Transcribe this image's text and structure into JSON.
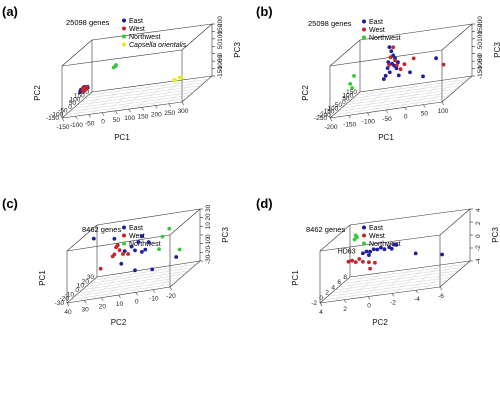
{
  "chart_data": [
    {
      "type": "scatter",
      "panel_label": "(a)",
      "note": "25098 genes",
      "xlabel": "PC1",
      "ylabel": "PC2",
      "zlabel": "PC3",
      "x_ticks": [
        "-150",
        "-100",
        "-50",
        "0",
        "50",
        "100",
        "150",
        "200",
        "250",
        "300"
      ],
      "y_ticks": [
        "-150",
        "-100",
        "-50",
        "0",
        "50",
        "100",
        "150",
        "200"
      ],
      "z_ticks": [
        "-150",
        "-100",
        "-50",
        "0",
        "50",
        "100",
        "150",
        "200"
      ],
      "legend": [
        {
          "name": "East",
          "color": "#1f1f9e"
        },
        {
          "name": "West",
          "color": "#c0262d"
        },
        {
          "name": "Northwest",
          "color": "#37c837"
        },
        {
          "name": "Capsella orientalis",
          "color": "#e8e82a",
          "italic": true
        }
      ],
      "series": [
        {
          "name": "East",
          "color": "#1f1f9e",
          "points": [
            [
              -108,
              -60,
              -15
            ],
            [
              -103,
              -55,
              -12
            ],
            [
              -98,
              -70,
              -20
            ],
            [
              -95,
              -50,
              -10
            ],
            [
              -92,
              -62,
              -18
            ],
            [
              -100,
              -45,
              -5
            ],
            [
              -88,
              -58,
              -14
            ],
            [
              -106,
              -75,
              -22
            ],
            [
              -90,
              -40,
              -8
            ],
            [
              -97,
              -66,
              -16
            ],
            [
              -85,
              -52,
              -11
            ]
          ]
        },
        {
          "name": "West",
          "color": "#c0262d",
          "points": [
            [
              -104,
              -48,
              -9
            ],
            [
              -99,
              -56,
              -13
            ],
            [
              -94,
              -68,
              -19
            ],
            [
              -101,
              -63,
              -17
            ],
            [
              -91,
              -46,
              -7
            ],
            [
              -96,
              -72,
              -21
            ],
            [
              -87,
              -60,
              -15
            ],
            [
              -102,
              -53,
              -12
            ]
          ]
        },
        {
          "name": "Northwest",
          "color": "#37c837",
          "points": [
            [
              -60,
              200,
              10
            ],
            [
              -62,
              178,
              5
            ],
            [
              -58,
              188,
              8
            ]
          ]
        },
        {
          "name": "Capsella orientalis",
          "color": "#e8e82a",
          "points": [
            [
              255,
              -100,
              -15
            ],
            [
              270,
              -85,
              -10
            ],
            [
              262,
              -108,
              -18
            ],
            [
              280,
              -95,
              -12
            ]
          ]
        }
      ]
    },
    {
      "type": "scatter",
      "panel_label": "(b)",
      "note": "25098 genes",
      "xlabel": "PC1",
      "ylabel": "PC2",
      "zlabel": "PC3",
      "x_ticks": [
        "-200",
        "-150",
        "-100",
        "-50",
        "0",
        "50",
        "100"
      ],
      "y_ticks": [
        "-250",
        "-200",
        "-150",
        "-100",
        "-50",
        "0",
        "50",
        "100",
        "150"
      ],
      "z_ticks": [
        "-150",
        "-100",
        "-50",
        "0",
        "50",
        "100",
        "150",
        "200"
      ],
      "legend": [
        {
          "name": "East",
          "color": "#1f1f9e"
        },
        {
          "name": "West",
          "color": "#c0262d"
        },
        {
          "name": "Northwest",
          "color": "#37c837"
        }
      ],
      "series": [
        {
          "name": "East",
          "color": "#1f1f9e",
          "points": [
            [
              -85,
              0,
              190
            ],
            [
              -80,
              0,
              160
            ],
            [
              -75,
              0,
              130
            ],
            [
              -70,
              0,
              110
            ],
            [
              -88,
              0,
              90
            ],
            [
              -78,
              0,
              75
            ],
            [
              -72,
              0,
              60
            ],
            [
              -90,
              0,
              50
            ],
            [
              -66,
              0,
              40
            ],
            [
              -84,
              0,
              20
            ],
            [
              -60,
              0,
              -10
            ],
            [
              -95,
              0,
              0
            ],
            [
              -100,
              0,
              -20
            ],
            [
              -30,
              0,
              0
            ],
            [
              5,
              0,
              -40
            ],
            [
              40,
              0,
              70
            ],
            [
              -62,
              0,
              80
            ]
          ]
        },
        {
          "name": "West",
          "color": "#c0262d",
          "points": [
            [
              -75,
              0,
              185
            ],
            [
              -82,
              0,
              120
            ],
            [
              -70,
              0,
              95
            ],
            [
              -86,
              0,
              70
            ],
            [
              -65,
              0,
              60
            ],
            [
              -45,
              0,
              60
            ],
            [
              -55,
              0,
              30
            ],
            [
              -20,
              0,
              90
            ],
            [
              60,
              0,
              20
            ]
          ]
        },
        {
          "name": "Northwest",
          "color": "#37c837",
          "points": [
            [
              -180,
              0,
              30
            ],
            [
              -190,
              0,
              -20
            ],
            [
              -185,
              0,
              -50
            ]
          ]
        }
      ]
    },
    {
      "type": "scatter",
      "panel_label": "(c)",
      "note": "8462 genes",
      "xlabel": "PC2",
      "ylabel": "PC1",
      "zlabel": "PC3",
      "x_ticks": [
        "40",
        "30",
        "20",
        "10",
        "0",
        "-10",
        "-20"
      ],
      "y_ticks": [
        "-30",
        "-20",
        "-10",
        "0",
        "10",
        "20",
        "30"
      ],
      "z_ticks": [
        "-30",
        "-20",
        "-10",
        "0",
        "10",
        "20",
        "30"
      ],
      "legend": [
        {
          "name": "East",
          "color": "#1f1f9e"
        },
        {
          "name": "West",
          "color": "#c0262d"
        },
        {
          "name": "Northwest",
          "color": "#37c837"
        }
      ],
      "series": [
        {
          "name": "East",
          "color": "#1f1f9e",
          "points": [
            [
              34,
              0,
              26
            ],
            [
              22,
              0,
              22
            ],
            [
              16,
              0,
              6
            ],
            [
              12,
              0,
              10
            ],
            [
              10,
              0,
              5
            ],
            [
              8,
              0,
              14
            ],
            [
              6,
              0,
              20
            ],
            [
              4,
              0,
              4
            ],
            [
              2,
              0,
              12
            ],
            [
              18,
              0,
              -8
            ],
            [
              10,
              0,
              -18
            ],
            [
              0,
              0,
              -20
            ],
            [
              -14,
              0,
              -10
            ],
            [
              6,
              0,
              2
            ]
          ]
        },
        {
          "name": "West",
          "color": "#c0262d",
          "points": [
            [
              22,
              0,
              4
            ],
            [
              19,
              0,
              8
            ],
            [
              17,
              0,
              3
            ],
            [
              30,
              0,
              -10
            ],
            [
              20,
              0,
              14
            ],
            [
              14,
              0,
              2
            ],
            [
              23,
              0,
              2
            ],
            [
              21,
              0,
              12
            ]
          ]
        },
        {
          "name": "Northwest",
          "color": "#37c837",
          "points": [
            [
              -6,
              0,
              16
            ],
            [
              -10,
              0,
              24
            ],
            [
              -16,
              0,
              -2
            ],
            [
              -4,
              0,
              2
            ]
          ]
        }
      ]
    },
    {
      "type": "scatter",
      "panel_label": "(d)",
      "note": "8462 genes",
      "annotation": "HD63",
      "xlabel": "PC2",
      "ylabel": "PC1",
      "zlabel": "PC3",
      "x_ticks": [
        "4",
        "2",
        "0",
        "-2",
        "-4",
        "-6"
      ],
      "y_ticks": [
        "-2",
        "0",
        "2",
        "4",
        "6",
        "8"
      ],
      "z_ticks": [
        "-4",
        "-2",
        "0",
        "2",
        "4"
      ],
      "legend": [
        {
          "name": "East",
          "color": "#1f1f9e"
        },
        {
          "name": "West",
          "color": "#c0262d"
        },
        {
          "name": "Northwest",
          "color": "#37c837"
        }
      ],
      "series": [
        {
          "name": "East",
          "color": "#1f1f9e",
          "points": [
            [
              1.8,
              0,
              0.9
            ],
            [
              1.5,
              0,
              1.1
            ],
            [
              1.2,
              0,
              1.0
            ],
            [
              0.9,
              0,
              1.3
            ],
            [
              0.6,
              0,
              1.2
            ],
            [
              0.3,
              0,
              1.4
            ],
            [
              0.0,
              0,
              1.1
            ],
            [
              -0.4,
              0,
              1.3
            ],
            [
              -0.6,
              0,
              1.0
            ],
            [
              -1.0,
              0,
              1.5
            ],
            [
              -0.8,
              0,
              1.6
            ],
            [
              1.3,
              0,
              0.5
            ],
            [
              -4.8,
              0,
              -0.9
            ],
            [
              -2.6,
              0,
              -0.2
            ]
          ]
        },
        {
          "name": "West",
          "color": "#c0262d",
          "points": [
            [
              3.0,
              0,
              -0.1
            ],
            [
              2.7,
              0,
              0.0
            ],
            [
              2.4,
              0,
              -0.3
            ],
            [
              2.1,
              0,
              0.1
            ],
            [
              1.8,
              0,
              -0.4
            ],
            [
              1.3,
              0,
              -0.6
            ],
            [
              0.8,
              0,
              -0.8
            ],
            [
              1.2,
              0,
              -1.6
            ]
          ]
        },
        {
          "name": "Northwest",
          "color": "#37c837",
          "points": [
            [
              2.4,
              0,
              3.8
            ],
            [
              2.3,
              0,
              3.5
            ],
            [
              2.5,
              0,
              3.2
            ]
          ]
        }
      ]
    }
  ]
}
